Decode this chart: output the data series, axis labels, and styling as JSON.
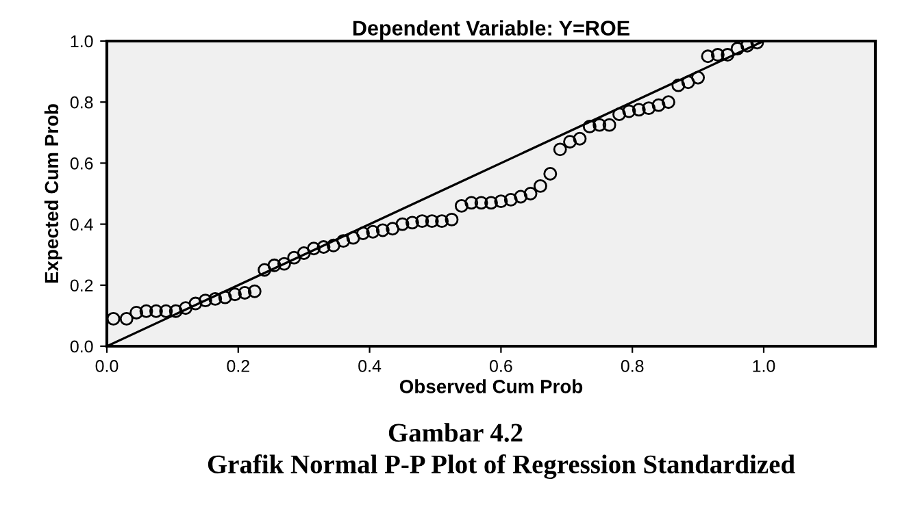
{
  "chart_data": {
    "type": "scatter",
    "title": "Dependent Variable: Y=ROE",
    "xlabel": "Observed Cum Prob",
    "ylabel": "Expected Cum Prob",
    "annotations": [
      "Gambar 4.2",
      "Grafik Normal P-P Plot of Regression Standardized"
    ],
    "series": [
      {
        "color": "#000000",
        "marker": "circle",
        "x": [
          0.01,
          0.03,
          0.045,
          0.06,
          0.075,
          0.09,
          0.105,
          0.12,
          0.135,
          0.15,
          0.165,
          0.18,
          0.195,
          0.21,
          0.225,
          0.24,
          0.255,
          0.27,
          0.285,
          0.3,
          0.315,
          0.33,
          0.345,
          0.36,
          0.375,
          0.39,
          0.405,
          0.42,
          0.435,
          0.45,
          0.465,
          0.48,
          0.495,
          0.51,
          0.525,
          0.54,
          0.555,
          0.57,
          0.585,
          0.6,
          0.615,
          0.63,
          0.645,
          0.66,
          0.675,
          0.69,
          0.705,
          0.72,
          0.735,
          0.75,
          0.765,
          0.78,
          0.795,
          0.81,
          0.825,
          0.84,
          0.855,
          0.87,
          0.885,
          0.9,
          0.915,
          0.93,
          0.945,
          0.96,
          0.975,
          0.99
        ],
        "values": [
          0.09,
          0.09,
          0.11,
          0.115,
          0.115,
          0.115,
          0.115,
          0.125,
          0.14,
          0.15,
          0.155,
          0.16,
          0.17,
          0.175,
          0.18,
          0.25,
          0.265,
          0.27,
          0.29,
          0.305,
          0.32,
          0.325,
          0.33,
          0.345,
          0.355,
          0.37,
          0.375,
          0.38,
          0.385,
          0.4,
          0.405,
          0.41,
          0.41,
          0.41,
          0.415,
          0.46,
          0.47,
          0.47,
          0.47,
          0.475,
          0.48,
          0.49,
          0.5,
          0.525,
          0.565,
          0.645,
          0.67,
          0.68,
          0.72,
          0.725,
          0.725,
          0.76,
          0.77,
          0.775,
          0.78,
          0.79,
          0.8,
          0.855,
          0.865,
          0.88,
          0.95,
          0.955,
          0.955,
          0.975,
          0.985,
          0.995
        ]
      },
      {
        "type": "line",
        "color": "#000000",
        "marker": "none",
        "x": [
          0,
          1
        ],
        "values": [
          0,
          1
        ]
      }
    ],
    "xlim": [
      0,
      1.17
    ],
    "ylim": [
      0,
      1
    ],
    "xticks": [
      {
        "value": 0,
        "label": "0.0"
      },
      {
        "value": 0.2,
        "label": "0.2"
      },
      {
        "value": 0.4,
        "label": "0.4"
      },
      {
        "value": 0.6,
        "label": "0.6"
      },
      {
        "value": 0.8,
        "label": "0.8"
      },
      {
        "value": 1,
        "label": "1.0"
      }
    ],
    "yticks": [
      {
        "value": 0,
        "label": "0.0"
      },
      {
        "value": 0.2,
        "label": "0.2"
      },
      {
        "value": 0.4,
        "label": "0.4"
      },
      {
        "value": 0.6,
        "label": "0.6"
      },
      {
        "value": 0.8,
        "label": "0.8"
      },
      {
        "value": 1,
        "label": "1.0"
      }
    ],
    "grid": false,
    "legend": false
  }
}
